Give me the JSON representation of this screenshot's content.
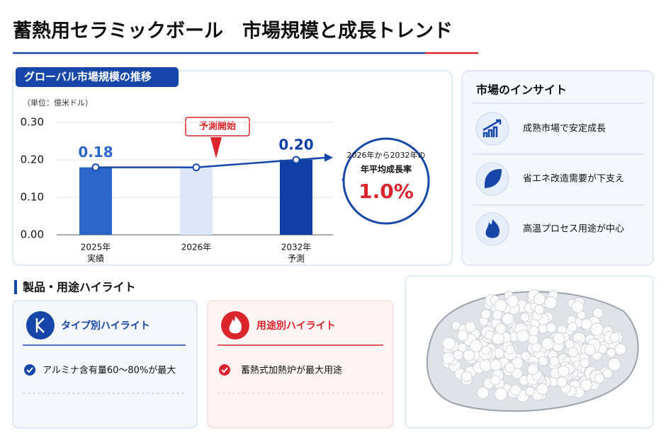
{
  "title": "蓄熱用セラミックボール　市場規模と成長トレンド",
  "chart_panel": {
    "heading": "グローバル市場規模の推移",
    "unit": "（単位：億米ドル）",
    "annotation": "予測開始",
    "cagr": {
      "line1": "2026年から2032年の",
      "line2": "年平均成長率",
      "value_label": "1.0%"
    }
  },
  "chart_data": {
    "type": "bar",
    "categories": [
      "2025年",
      "2026年",
      "2032年"
    ],
    "sublabels": [
      "実績",
      null,
      "予測"
    ],
    "values": [
      0.18,
      0.18,
      0.2
    ],
    "value_labels": [
      "0.18",
      null,
      "0.20"
    ],
    "colors": [
      "#2a66c9",
      "#dce8f8",
      "#0d3fa6"
    ],
    "line_color": "#1646a8",
    "ylim": [
      0,
      0.3
    ],
    "yticks": [
      {
        "value": 0,
        "label": "0.00"
      },
      {
        "value": 0.1,
        "label": "0.10"
      },
      {
        "value": 0.2,
        "label": "0.20"
      },
      {
        "value": 0.3,
        "label": "0.30"
      }
    ],
    "grid": true
  },
  "insights": {
    "title": "市場のインサイト",
    "items": [
      "成熟市場で安定成長",
      "省エネ改造需要が下支え",
      "高温プロセス用途が中心"
    ]
  },
  "highlights": {
    "heading": "製品・用途ハイライト",
    "cards": [
      {
        "title": "タイプ別ハイライト",
        "item": "アルミナ含有量60～80%が最大"
      },
      {
        "title": "用途別ハイライト",
        "item": "蓄熱式加熱炉が最大用途"
      }
    ]
  }
}
